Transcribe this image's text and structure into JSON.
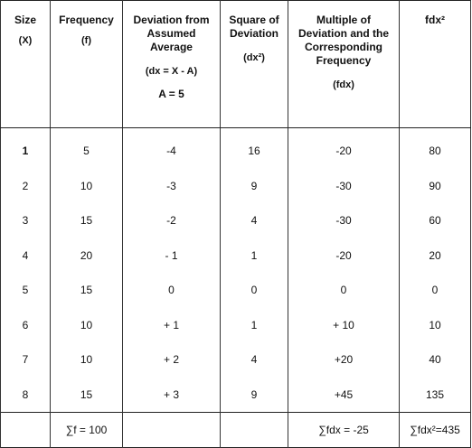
{
  "headers": [
    {
      "lines": [
        "Size"
      ],
      "sub": "(X)"
    },
    {
      "lines": [
        "Frequency"
      ],
      "sub": "(f)"
    },
    {
      "lines": [
        "Deviation from",
        "Assumed",
        "Average"
      ],
      "formula": "(dx = X - A)",
      "assumed": "A = 5"
    },
    {
      "lines": [
        "Square of",
        "Deviation"
      ],
      "sub": "(dx²)"
    },
    {
      "lines": [
        "Multiple of",
        "Deviation and the",
        "Corresponding",
        "Frequency"
      ],
      "sub": "(fdx)"
    },
    {
      "lines": [
        "fdx²"
      ]
    }
  ],
  "rows": [
    {
      "x": "1",
      "f": "5",
      "dx": "-4",
      "dx2": "16",
      "fdx": "-20",
      "fdx2": "80"
    },
    {
      "x": "2",
      "f": "10",
      "dx": "-3",
      "dx2": "9",
      "fdx": "-30",
      "fdx2": "90"
    },
    {
      "x": "3",
      "f": "15",
      "dx": "-2",
      "dx2": "4",
      "fdx": "-30",
      "fdx2": "60"
    },
    {
      "x": "4",
      "f": "20",
      "dx": "- 1",
      "dx2": "1",
      "fdx": "-20",
      "fdx2": "20"
    },
    {
      "x": "5",
      "f": "15",
      "dx": "0",
      "dx2": "0",
      "fdx": "0",
      "fdx2": "0"
    },
    {
      "x": "6",
      "f": "10",
      "dx": "+ 1",
      "dx2": "1",
      "fdx": "+ 10",
      "fdx2": "10"
    },
    {
      "x": "7",
      "f": "10",
      "dx": "+ 2",
      "dx2": "4",
      "fdx": "+20",
      "fdx2": "40"
    },
    {
      "x": "8",
      "f": "15",
      "dx": "+ 3",
      "dx2": "9",
      "fdx": "+45",
      "fdx2": "135"
    }
  ],
  "totals": {
    "x": "",
    "f": "∑f = 100",
    "dx": "",
    "dx2": "",
    "fdx": "∑fdx = -25",
    "fdx2": "∑fdx²=435"
  }
}
